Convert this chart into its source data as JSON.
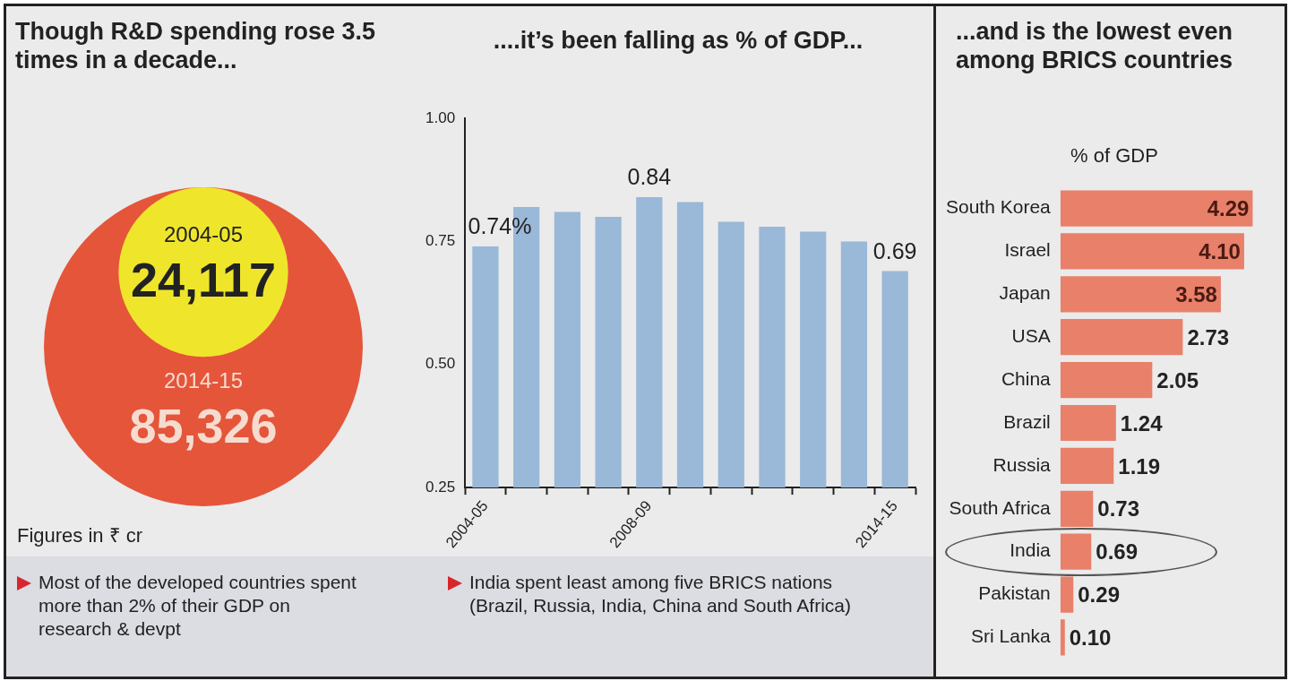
{
  "chart_data": [
    {
      "type": "other",
      "title": "Though R&D spending rose 3.5 times in a decade...",
      "categories": [
        "2004-05",
        "2014-15"
      ],
      "values": [
        24117,
        85326
      ],
      "value_labels": [
        "24,117",
        "85,326"
      ],
      "colors": [
        "#efe62c",
        "#e5553a"
      ],
      "annotations": [
        "Figures in ₹ cr",
        "Most of the developed countries spent more than 2% of their GDP on research & devpt"
      ]
    },
    {
      "type": "bar",
      "title": "....it’s been falling as % of GDP...",
      "categories": [
        "2004-05",
        null,
        null,
        null,
        "2008-09",
        null,
        null,
        null,
        null,
        null,
        "2014-15"
      ],
      "values": [
        0.74,
        0.82,
        0.81,
        0.8,
        0.84,
        0.83,
        0.79,
        0.78,
        0.77,
        0.75,
        0.69
      ],
      "value_labels": [
        "0.74%",
        null,
        null,
        null,
        "0.84",
        null,
        null,
        null,
        null,
        null,
        "0.69"
      ],
      "color": "#9ab8d8",
      "ylim": [
        0.25,
        1.0
      ],
      "yticks": [
        {
          "value": 0.25,
          "label": "0.25"
        },
        {
          "value": 0.5,
          "label": "0.50"
        },
        {
          "value": 0.75,
          "label": "0.75"
        },
        {
          "value": 1.0,
          "label": "1.00"
        }
      ],
      "annotations": [
        "India spent least among five BRICS nations (Brazil, Russia, India, China and South Africa)"
      ]
    },
    {
      "type": "bar",
      "orientation": "horizontal",
      "title": "...and is the lowest even among BRICS countries",
      "subtitle": "% of GDP",
      "categories": [
        "South Korea",
        "Israel",
        "Japan",
        "USA",
        "China",
        "Brazil",
        "Russia",
        "South Africa",
        "India",
        "Pakistan",
        "Sri Lanka"
      ],
      "values": [
        4.29,
        4.1,
        3.58,
        2.73,
        2.05,
        1.24,
        1.19,
        0.73,
        0.69,
        0.29,
        0.1
      ],
      "value_labels": [
        "4.29",
        "4.10",
        "3.58",
        "2.73",
        "2.05",
        "1.24",
        "1.19",
        "0.73",
        "0.69",
        "0.29",
        "0.10"
      ],
      "color": "#e8806a",
      "tick_labels": "y"
    }
  ]
}
